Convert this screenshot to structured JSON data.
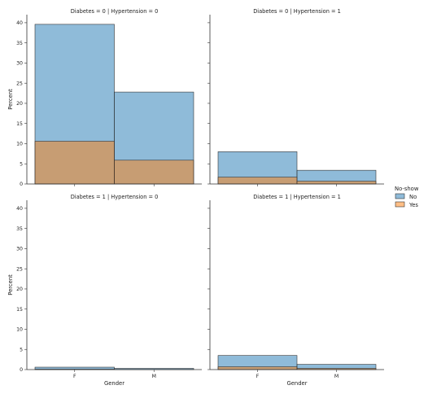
{
  "chart_data": {
    "type": "bar",
    "layout": "facet-grid 2x2, histogram, overlaid hue",
    "xlabel": "Gender",
    "ylabel": "Percent",
    "categories": [
      "F",
      "M"
    ],
    "ylim": [
      0,
      42
    ],
    "yticks": [
      0,
      5,
      10,
      15,
      20,
      25,
      30,
      35,
      40
    ],
    "grid": false,
    "legend": {
      "title": "No-show",
      "placement": "right",
      "entries": [
        {
          "label": "No",
          "color": "#1f77b4"
        },
        {
          "label": "Yes",
          "color": "#ff7f0e"
        }
      ]
    },
    "facets": [
      {
        "title": "Diabetes = 0 | Hypertension = 0",
        "series": [
          {
            "name": "No",
            "values": [
              39.6,
              22.8
            ]
          },
          {
            "name": "Yes",
            "values": [
              10.6,
              5.9
            ]
          }
        ]
      },
      {
        "title": "Diabetes = 0 | Hypertension = 1",
        "series": [
          {
            "name": "No",
            "values": [
              8.0,
              3.4
            ]
          },
          {
            "name": "Yes",
            "values": [
              1.7,
              0.7
            ]
          }
        ]
      },
      {
        "title": "Diabetes = 1 | Hypertension = 0",
        "series": [
          {
            "name": "No",
            "values": [
              0.6,
              0.3
            ]
          },
          {
            "name": "Yes",
            "values": [
              0.1,
              0.05
            ]
          }
        ]
      },
      {
        "title": "Diabetes = 1 | Hypertension = 1",
        "series": [
          {
            "name": "No",
            "values": [
              3.5,
              1.3
            ]
          },
          {
            "name": "Yes",
            "values": [
              0.7,
              0.3
            ]
          }
        ]
      }
    ]
  }
}
